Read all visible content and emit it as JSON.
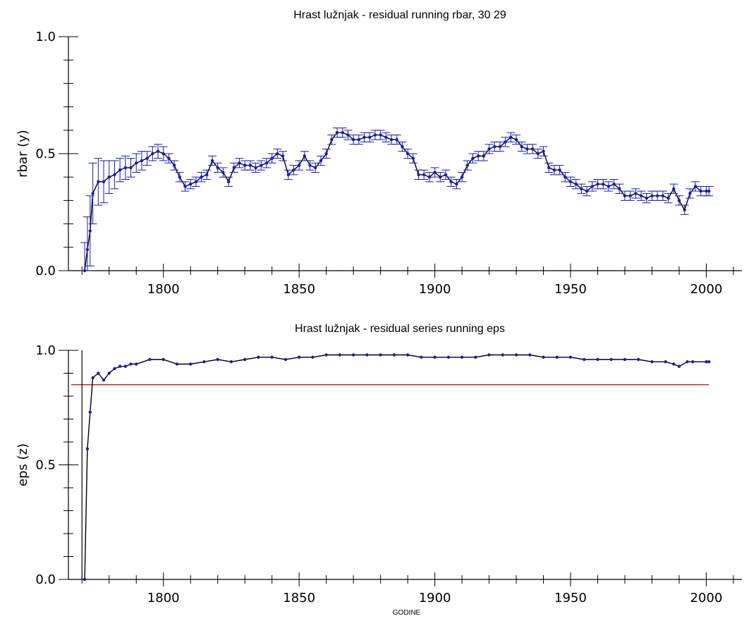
{
  "chart_data": [
    {
      "type": "line",
      "title": "Hrast lužnjak - residual running rbar,    30   29",
      "xlabel": "",
      "ylabel": "rbar (y)",
      "xlim": [
        1765,
        2010
      ],
      "ylim": [
        0.0,
        1.0
      ],
      "x_ticks": [
        1800,
        1850,
        1900,
        1950,
        2000
      ],
      "y_ticks": [
        0.0,
        0.5,
        1.0
      ],
      "y_tick_labels": [
        "0.0",
        "0.5",
        "1.0"
      ],
      "grid": false,
      "series_color": "#1a1ab4",
      "line_color": "#000000",
      "series": [
        {
          "x": [
            1771,
            1772,
            1773,
            1774,
            1776,
            1778,
            1780,
            1782,
            1784,
            1786,
            1788,
            1790,
            1792,
            1794,
            1796,
            1798,
            1800,
            1802,
            1804,
            1806,
            1808,
            1810,
            1812,
            1814,
            1816,
            1818,
            1820,
            1822,
            1824,
            1826,
            1828,
            1830,
            1832,
            1834,
            1836,
            1838,
            1840,
            1842,
            1844,
            1846,
            1848,
            1850,
            1852,
            1854,
            1856,
            1858,
            1860,
            1862,
            1864,
            1866,
            1868,
            1870,
            1872,
            1874,
            1876,
            1878,
            1880,
            1882,
            1884,
            1886,
            1888,
            1890,
            1892,
            1894,
            1896,
            1898,
            1900,
            1902,
            1904,
            1906,
            1908,
            1910,
            1912,
            1914,
            1916,
            1918,
            1920,
            1922,
            1924,
            1926,
            1928,
            1930,
            1932,
            1934,
            1936,
            1938,
            1940,
            1942,
            1944,
            1946,
            1948,
            1950,
            1952,
            1954,
            1956,
            1958,
            1960,
            1962,
            1964,
            1966,
            1968,
            1970,
            1972,
            1974,
            1976,
            1978,
            1980,
            1982,
            1984,
            1986,
            1988,
            1990,
            1992,
            1994,
            1996,
            1998,
            2000,
            2001
          ],
          "values": [
            0.0,
            0.09,
            0.17,
            0.33,
            0.38,
            0.38,
            0.4,
            0.41,
            0.43,
            0.44,
            0.44,
            0.46,
            0.47,
            0.48,
            0.5,
            0.51,
            0.5,
            0.48,
            0.45,
            0.4,
            0.36,
            0.37,
            0.38,
            0.4,
            0.41,
            0.47,
            0.44,
            0.42,
            0.38,
            0.44,
            0.46,
            0.45,
            0.45,
            0.44,
            0.45,
            0.46,
            0.48,
            0.5,
            0.49,
            0.41,
            0.43,
            0.45,
            0.49,
            0.45,
            0.44,
            0.47,
            0.5,
            0.56,
            0.59,
            0.59,
            0.58,
            0.56,
            0.56,
            0.57,
            0.57,
            0.58,
            0.58,
            0.57,
            0.56,
            0.56,
            0.53,
            0.5,
            0.48,
            0.41,
            0.41,
            0.4,
            0.42,
            0.4,
            0.41,
            0.38,
            0.37,
            0.4,
            0.45,
            0.48,
            0.49,
            0.49,
            0.52,
            0.53,
            0.53,
            0.55,
            0.57,
            0.56,
            0.53,
            0.52,
            0.52,
            0.5,
            0.51,
            0.44,
            0.43,
            0.43,
            0.4,
            0.38,
            0.37,
            0.35,
            0.34,
            0.36,
            0.37,
            0.37,
            0.36,
            0.37,
            0.35,
            0.32,
            0.32,
            0.33,
            0.32,
            0.31,
            0.32,
            0.32,
            0.32,
            0.31,
            0.35,
            0.3,
            0.26,
            0.33,
            0.36,
            0.34,
            0.34,
            0.34
          ],
          "errors": [
            0.12,
            0.14,
            0.15,
            0.13,
            0.1,
            0.09,
            0.07,
            0.06,
            0.05,
            0.05,
            0.04,
            0.04,
            0.04,
            0.03,
            0.03,
            0.03,
            0.03,
            0.02,
            0.02,
            0.02,
            0.02,
            0.02,
            0.02,
            0.02,
            0.02,
            0.02,
            0.02,
            0.02,
            0.02,
            0.02,
            0.02,
            0.02,
            0.02,
            0.02,
            0.02,
            0.02,
            0.02,
            0.02,
            0.02,
            0.02,
            0.02,
            0.02,
            0.02,
            0.02,
            0.02,
            0.02,
            0.02,
            0.02,
            0.02,
            0.02,
            0.02,
            0.02,
            0.02,
            0.02,
            0.02,
            0.02,
            0.02,
            0.02,
            0.02,
            0.02,
            0.02,
            0.02,
            0.02,
            0.02,
            0.02,
            0.02,
            0.02,
            0.02,
            0.02,
            0.02,
            0.02,
            0.02,
            0.02,
            0.02,
            0.02,
            0.02,
            0.02,
            0.02,
            0.02,
            0.02,
            0.02,
            0.02,
            0.02,
            0.02,
            0.02,
            0.02,
            0.02,
            0.02,
            0.02,
            0.02,
            0.02,
            0.02,
            0.02,
            0.02,
            0.02,
            0.02,
            0.02,
            0.02,
            0.02,
            0.02,
            0.02,
            0.02,
            0.02,
            0.02,
            0.02,
            0.02,
            0.02,
            0.02,
            0.02,
            0.02,
            0.02,
            0.02,
            0.02,
            0.02,
            0.02,
            0.02,
            0.02,
            0.02
          ]
        }
      ]
    },
    {
      "type": "line",
      "title": "Hrast lužnjak - residual series running eps",
      "xlabel": "GODINE",
      "ylabel": "eps (z)",
      "xlim": [
        1765,
        2010
      ],
      "ylim": [
        0.0,
        1.0
      ],
      "x_ticks": [
        1800,
        1850,
        1900,
        1950,
        2000
      ],
      "y_ticks": [
        0.0,
        0.5,
        1.0
      ],
      "y_tick_labels": [
        "0.0",
        "0.5",
        "1.0"
      ],
      "grid": false,
      "threshold": 0.85,
      "threshold_color": "#cc0000",
      "series_color": "#1a1ab4",
      "line_color": "#000000",
      "series": [
        {
          "x": [
            1771,
            1772,
            1773,
            1774,
            1776,
            1778,
            1780,
            1782,
            1784,
            1786,
            1788,
            1790,
            1795,
            1800,
            1805,
            1810,
            1815,
            1820,
            1825,
            1830,
            1835,
            1840,
            1845,
            1850,
            1855,
            1860,
            1865,
            1870,
            1875,
            1880,
            1885,
            1890,
            1895,
            1900,
            1905,
            1910,
            1915,
            1920,
            1925,
            1930,
            1935,
            1940,
            1945,
            1950,
            1955,
            1960,
            1965,
            1970,
            1975,
            1980,
            1985,
            1988,
            1990,
            1993,
            1995,
            2000,
            2001
          ],
          "values": [
            0.0,
            0.57,
            0.73,
            0.88,
            0.9,
            0.87,
            0.9,
            0.92,
            0.93,
            0.93,
            0.94,
            0.94,
            0.96,
            0.96,
            0.94,
            0.94,
            0.95,
            0.96,
            0.95,
            0.96,
            0.97,
            0.97,
            0.96,
            0.97,
            0.97,
            0.98,
            0.98,
            0.98,
            0.98,
            0.98,
            0.98,
            0.98,
            0.97,
            0.97,
            0.97,
            0.97,
            0.97,
            0.98,
            0.98,
            0.98,
            0.98,
            0.97,
            0.97,
            0.97,
            0.96,
            0.96,
            0.96,
            0.96,
            0.96,
            0.95,
            0.95,
            0.94,
            0.93,
            0.95,
            0.95,
            0.95,
            0.95
          ]
        }
      ]
    }
  ]
}
